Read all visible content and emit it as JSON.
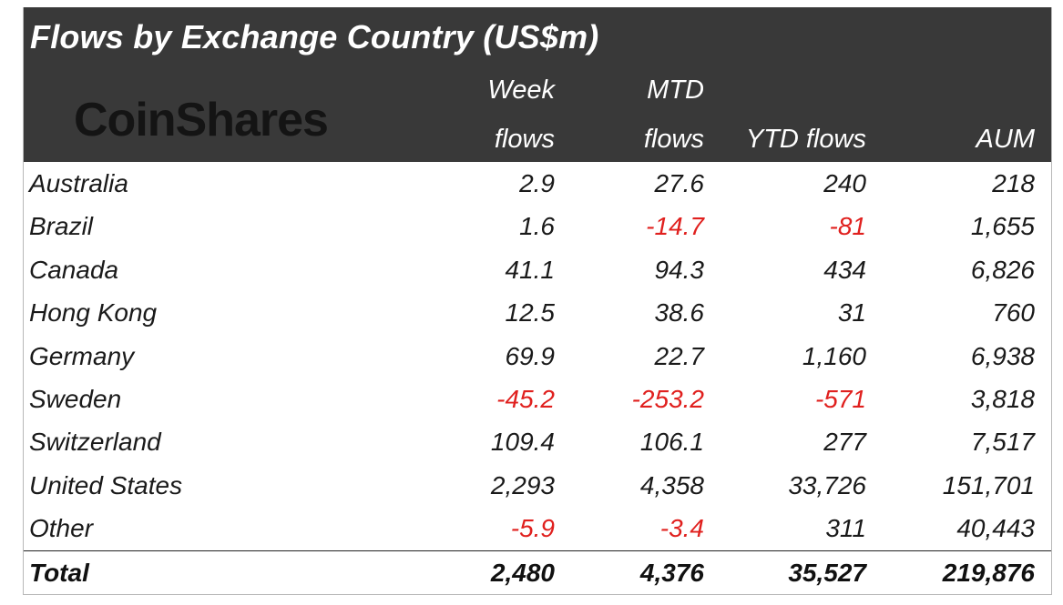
{
  "chart_data": {
    "type": "table",
    "title": "Flows by Exchange Country (US$m)",
    "brand": "CoinShares",
    "columns": [
      {
        "line1": "Week",
        "line2": "flows"
      },
      {
        "line1": "MTD",
        "line2": "flows"
      },
      {
        "line1": "",
        "line2": "YTD flows"
      },
      {
        "line1": "",
        "line2": "AUM"
      }
    ],
    "rows": [
      {
        "name": "Australia",
        "values": [
          "2.9",
          "27.6",
          "240",
          "218"
        ]
      },
      {
        "name": "Brazil",
        "values": [
          "1.6",
          "-14.7",
          "-81",
          "1,655"
        ]
      },
      {
        "name": "Canada",
        "values": [
          "41.1",
          "94.3",
          "434",
          "6,826"
        ]
      },
      {
        "name": "Hong Kong",
        "values": [
          "12.5",
          "38.6",
          "31",
          "760"
        ]
      },
      {
        "name": "Germany",
        "values": [
          "69.9",
          "22.7",
          "1,160",
          "6,938"
        ]
      },
      {
        "name": "Sweden",
        "values": [
          "-45.2",
          "-253.2",
          "-571",
          "3,818"
        ]
      },
      {
        "name": "Switzerland",
        "values": [
          "109.4",
          "106.1",
          "277",
          "7,517"
        ]
      },
      {
        "name": "United States",
        "values": [
          "2,293",
          "4,358",
          "33,726",
          "151,701"
        ]
      },
      {
        "name": "Other",
        "values": [
          "-5.9",
          "-3.4",
          "311",
          "40,443"
        ]
      }
    ],
    "total": {
      "name": "Total",
      "values": [
        "2,480",
        "4,376",
        "35,527",
        "219,876"
      ]
    },
    "colors": {
      "header_bg": "#393939",
      "header_text": "#ffffff",
      "negative": "#e0201e",
      "text": "#1a1a1a"
    }
  }
}
